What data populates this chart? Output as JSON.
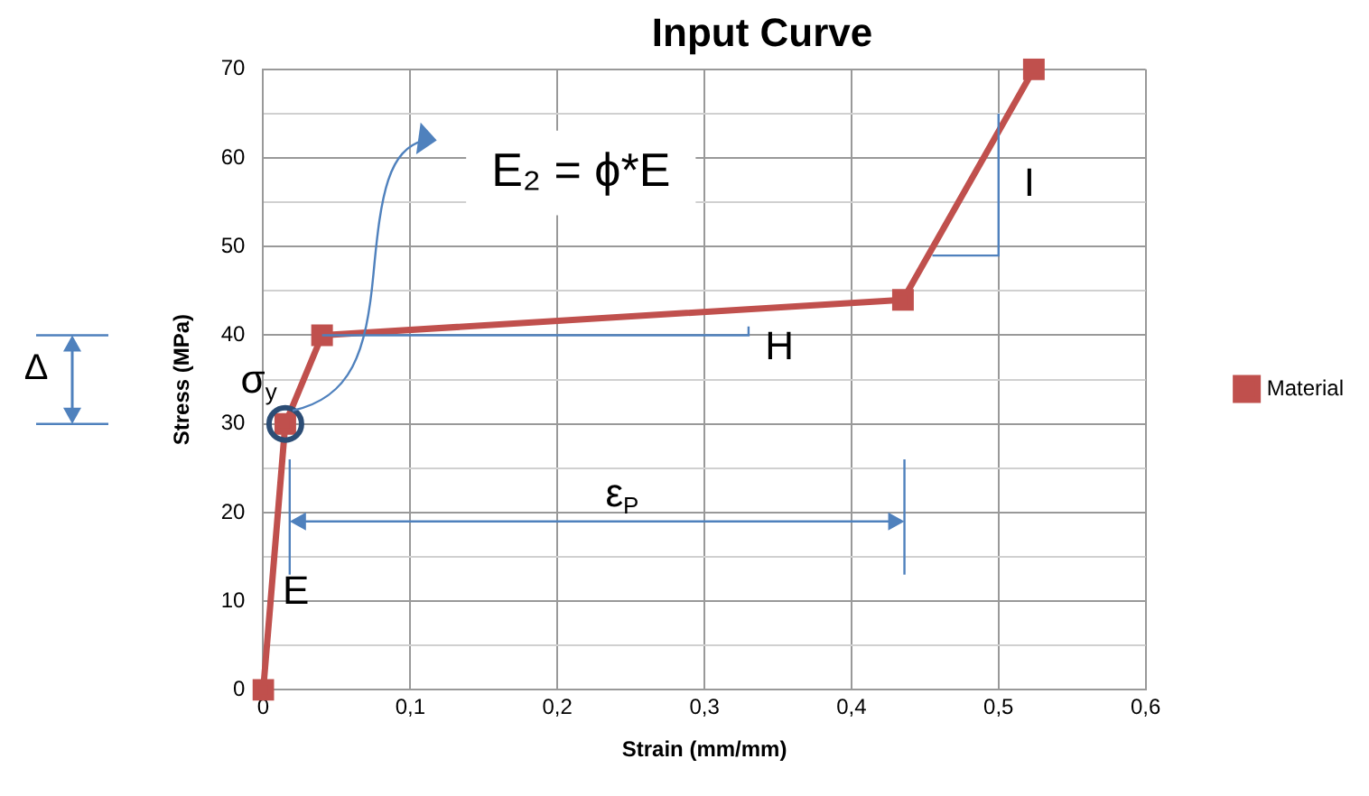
{
  "chart_data": {
    "type": "line",
    "title": "Input Curve",
    "xlabel": "Strain (mm/mm)",
    "ylabel": "Stress (MPa)",
    "x": [
      0,
      0.015,
      0.04,
      0.435,
      0.524
    ],
    "series": [
      {
        "name": "Material",
        "color": "#c0504d",
        "values": [
          0,
          30,
          40,
          44,
          70
        ]
      }
    ],
    "xlim": [
      0,
      0.6
    ],
    "xticks": [
      0,
      {
        "value": 0.1,
        "label": "0,1"
      },
      {
        "value": 0.2,
        "label": "0,2"
      },
      {
        "value": 0.3,
        "label": "0,3"
      },
      {
        "value": 0.4,
        "label": "0,4"
      },
      {
        "value": 0.5,
        "label": "0,5"
      },
      {
        "value": 0.6,
        "label": "0,6"
      }
    ],
    "ylim": [
      0,
      70
    ],
    "yticks": [
      0,
      {
        "value": 5,
        "label": null
      },
      10,
      {
        "value": 15,
        "label": null
      },
      20,
      {
        "value": 25,
        "label": null
      },
      30,
      {
        "value": 35,
        "label": null
      },
      40,
      {
        "value": 45,
        "label": null
      },
      50,
      {
        "value": 55,
        "label": null
      },
      60,
      {
        "value": 65,
        "label": null
      },
      70
    ],
    "grid": true,
    "legend": "right",
    "marker": "square",
    "line_style": "solid",
    "annotations": [
      "E₂ = ϕ*E",
      "σ$_{y}$",
      "H",
      "I",
      "ε$_{P}$",
      {
        "text": "E",
        "x": 0.0075,
        "y": 15
      },
      "Δ"
    ]
  }
}
